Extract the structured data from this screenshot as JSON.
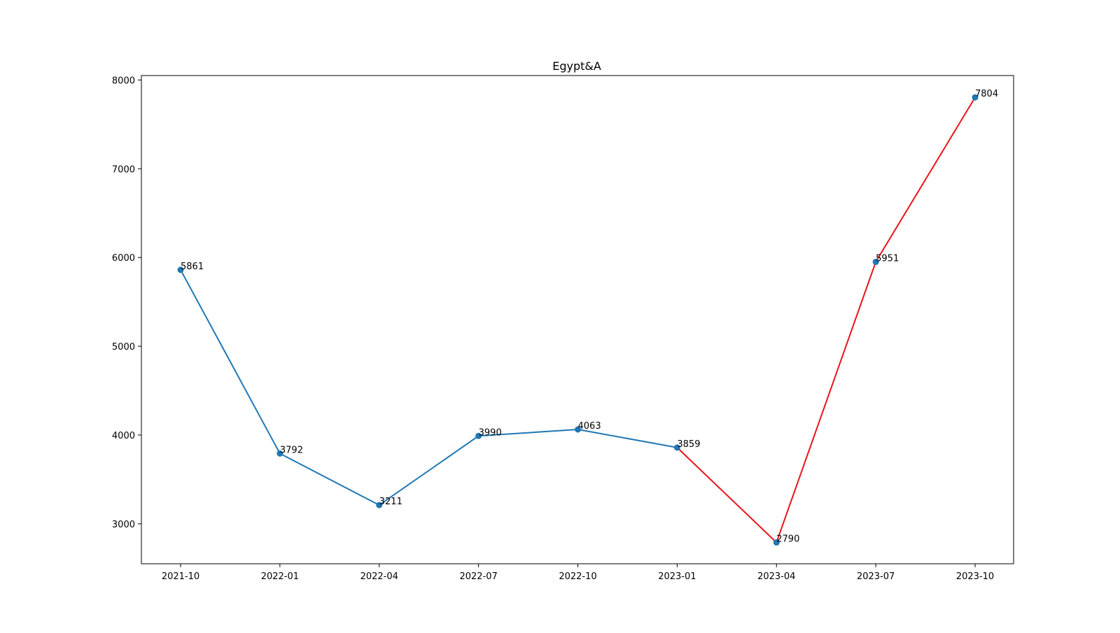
{
  "chart_data": {
    "type": "line",
    "title": "Egypt&A",
    "xlabel": "",
    "ylabel": "",
    "categories": [
      "2021-10",
      "2022-01",
      "2022-04",
      "2022-07",
      "2022-10",
      "2023-01",
      "2023-04",
      "2023-07",
      "2023-10"
    ],
    "values": [
      5861,
      3792,
      3211,
      3990,
      4063,
      3859,
      2790,
      5951,
      7804
    ],
    "data_labels": [
      "5861",
      "3792",
      "3211",
      "3990",
      "4063",
      "3859",
      "2790",
      "5951",
      "7804"
    ],
    "yticks": [
      3000,
      4000,
      5000,
      6000,
      7000,
      8000
    ],
    "ytick_labels": [
      "3000",
      "4000",
      "5000",
      "6000",
      "7000",
      "8000"
    ],
    "ylim": [
      2550,
      8050
    ],
    "grid": false,
    "legend": "none",
    "highlight_from_index": 5,
    "colors": {
      "line": "#1f77b4",
      "marker": "#1f77b4",
      "highlight": "#e8141b",
      "axis": "#000000",
      "background": "#ffffff"
    }
  }
}
